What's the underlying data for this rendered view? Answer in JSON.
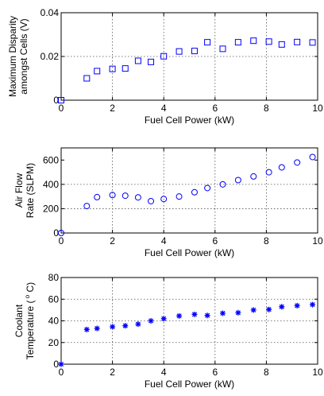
{
  "chart_data": [
    {
      "type": "scatter",
      "marker": "square",
      "color": "#0000ff",
      "xlabel": "Fuel Cell Power (kW)",
      "ylabel_lines": [
        "Maximum Disparity",
        "amongst Cells (V)"
      ],
      "xlim": [
        0,
        10
      ],
      "ylim": [
        0,
        0.04
      ],
      "xticks": [
        "0",
        "2",
        "4",
        "6",
        "8",
        "10"
      ],
      "yticks": [
        "0",
        "0.02",
        "0.04"
      ],
      "grid": true,
      "x": [
        0,
        1.0,
        1.4,
        2.0,
        2.5,
        3.0,
        3.5,
        4.0,
        4.6,
        5.2,
        5.7,
        6.3,
        6.9,
        7.5,
        8.1,
        8.6,
        9.2,
        9.8
      ],
      "y": [
        0.0,
        0.01,
        0.0133,
        0.0143,
        0.0145,
        0.018,
        0.0175,
        0.0201,
        0.0223,
        0.0225,
        0.0265,
        0.0235,
        0.0265,
        0.0272,
        0.0268,
        0.0255,
        0.0266,
        0.0264
      ]
    },
    {
      "type": "scatter",
      "marker": "circle",
      "color": "#0000ff",
      "xlabel": "Fuel Cell Power (kW)",
      "ylabel_lines": [
        "Air Flow",
        "Rate (SLPM)"
      ],
      "xlim": [
        0,
        10
      ],
      "ylim": [
        0,
        700
      ],
      "xticks": [
        "0",
        "2",
        "4",
        "6",
        "8",
        "10"
      ],
      "yticks": [
        "0",
        "200",
        "400",
        "600"
      ],
      "grid": true,
      "x": [
        0,
        1.0,
        1.4,
        2.0,
        2.5,
        3.0,
        3.5,
        4.0,
        4.6,
        5.2,
        5.7,
        6.3,
        6.9,
        7.5,
        8.1,
        8.6,
        9.2,
        9.8
      ],
      "y": [
        0,
        222,
        295,
        312,
        307,
        293,
        262,
        280,
        300,
        335,
        370,
        400,
        435,
        465,
        500,
        540,
        580,
        625
      ]
    },
    {
      "type": "scatter",
      "marker": "asterisk",
      "color": "#0000ff",
      "xlabel": "Fuel Cell Power (kW)",
      "ylabel_lines": [
        "Coolant",
        "Temperature ( C)"
      ],
      "ylabel_sup": "o",
      "xlim": [
        0,
        10
      ],
      "ylim": [
        0,
        80
      ],
      "xticks": [
        "0",
        "2",
        "4",
        "6",
        "8",
        "10"
      ],
      "yticks": [
        "0",
        "20",
        "40",
        "60",
        "80"
      ],
      "grid": true,
      "x": [
        0,
        1.0,
        1.4,
        2.0,
        2.5,
        3.0,
        3.5,
        4.0,
        4.6,
        5.2,
        5.7,
        6.3,
        6.9,
        7.5,
        8.1,
        8.6,
        9.2,
        9.8
      ],
      "y": [
        0,
        32,
        33,
        34.5,
        35.5,
        37,
        40,
        42,
        44.5,
        46,
        45,
        47,
        47.5,
        50,
        50.5,
        53,
        54,
        55
      ]
    }
  ]
}
